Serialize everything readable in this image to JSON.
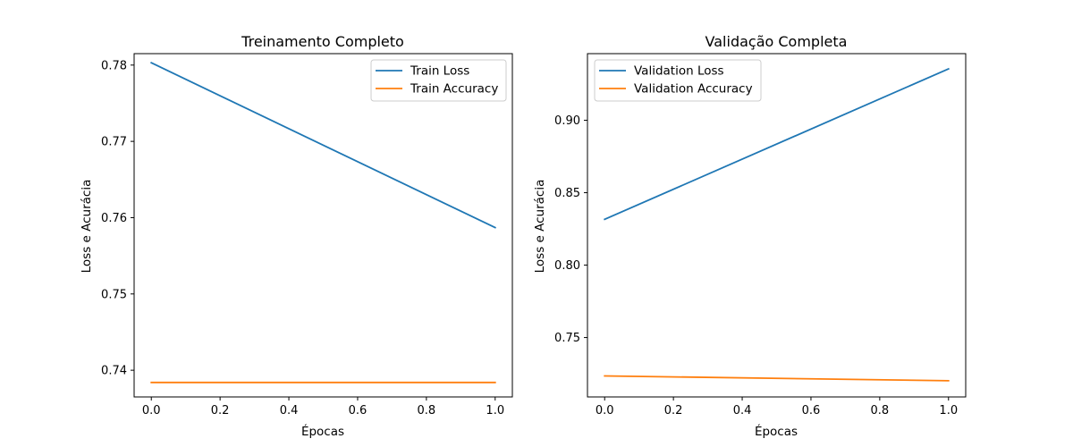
{
  "chart_data": [
    {
      "type": "line",
      "title": "Treinamento Completo",
      "xlabel": "Épocas",
      "ylabel": "Loss e Acurácia",
      "xlim": [
        -0.05,
        1.05
      ],
      "ylim": [
        0.7365,
        0.7815
      ],
      "xticks": [
        0.0,
        0.2,
        0.4,
        0.6,
        0.8,
        1.0
      ],
      "xtick_labels": [
        "0.0",
        "0.2",
        "0.4",
        "0.6",
        "0.8",
        "1.0"
      ],
      "yticks": [
        0.74,
        0.75,
        0.76,
        0.77,
        0.78
      ],
      "ytick_labels": [
        "0.74",
        "0.75",
        "0.76",
        "0.77",
        "0.78"
      ],
      "grid": false,
      "legend_position": "top-right",
      "x": [
        0,
        1
      ],
      "series": [
        {
          "name": "Train Loss",
          "color": "#1f77b4",
          "values": [
            0.7803,
            0.7587
          ]
        },
        {
          "name": "Train Accuracy",
          "color": "#ff7f0e",
          "values": [
            0.7384,
            0.7384
          ]
        }
      ]
    },
    {
      "type": "line",
      "title": "Validação Completa",
      "xlabel": "Épocas",
      "ylabel": "Loss e Acurácia",
      "xlim": [
        -0.05,
        1.05
      ],
      "ylim": [
        0.709,
        0.946
      ],
      "xticks": [
        0.0,
        0.2,
        0.4,
        0.6,
        0.8,
        1.0
      ],
      "xtick_labels": [
        "0.0",
        "0.2",
        "0.4",
        "0.6",
        "0.8",
        "1.0"
      ],
      "yticks": [
        0.75,
        0.8,
        0.85,
        0.9
      ],
      "ytick_labels": [
        "0.75",
        "0.80",
        "0.85",
        "0.90"
      ],
      "grid": false,
      "legend_position": "top-left",
      "x": [
        0,
        1
      ],
      "series": [
        {
          "name": "Validation Loss",
          "color": "#1f77b4",
          "values": [
            0.8316,
            0.9355
          ]
        },
        {
          "name": "Validation Accuracy",
          "color": "#ff7f0e",
          "values": [
            0.7235,
            0.7202
          ]
        }
      ]
    }
  ]
}
